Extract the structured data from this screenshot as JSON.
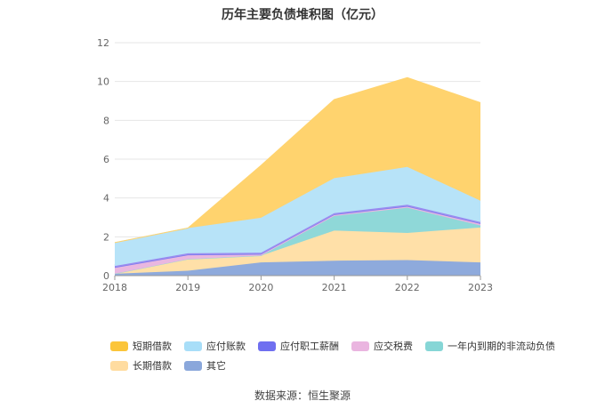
{
  "chart_data": {
    "type": "area",
    "stacked": true,
    "title": "历年主要负债堆积图（亿元）",
    "x": [
      "2018",
      "2019",
      "2020",
      "2021",
      "2022",
      "2023"
    ],
    "ylim": [
      0,
      12
    ],
    "yticks": [
      0,
      2,
      4,
      6,
      8,
      10,
      12
    ],
    "grid": true,
    "legend_position": "bottom",
    "series": [
      {
        "name": "其它",
        "color": "#8eaadc",
        "values": [
          0.1,
          0.25,
          0.68,
          0.77,
          0.8,
          0.68
        ]
      },
      {
        "name": "长期借款",
        "color": "#ffe0a8",
        "values": [
          0.0,
          0.6,
          0.35,
          1.55,
          1.4,
          1.8
        ]
      },
      {
        "name": "一年内到期的非流动负债",
        "color": "#8fd8d8",
        "values": [
          0.0,
          0.0,
          0.0,
          0.75,
          1.3,
          0.1
        ]
      },
      {
        "name": "应交税费",
        "color": "#e9b7e0",
        "values": [
          0.3,
          0.2,
          0.05,
          0.05,
          0.05,
          0.08
        ]
      },
      {
        "name": "应付职工薪酬",
        "color": "#7b7bef",
        "values": [
          0.1,
          0.1,
          0.1,
          0.1,
          0.1,
          0.1
        ]
      },
      {
        "name": "应付账款",
        "color": "#b7e3f8",
        "values": [
          1.2,
          1.3,
          1.8,
          1.8,
          1.95,
          1.1
        ]
      },
      {
        "name": "短期借款",
        "color": "#ffd36e",
        "values": [
          0.0,
          0.0,
          2.7,
          4.05,
          4.6,
          5.05
        ]
      }
    ]
  },
  "legend": {
    "row1": [
      {
        "label": "短期借款",
        "color": "#fbc53a"
      },
      {
        "label": "应付账款",
        "color": "#a8def8"
      },
      {
        "label": "应付职工薪酬",
        "color": "#6f6ff0"
      },
      {
        "label": "应交税费",
        "color": "#eab5e0"
      },
      {
        "label": "一年内到期的非流动负债",
        "color": "#86d6d6"
      }
    ],
    "row2": [
      {
        "label": "长期借款",
        "color": "#ffdca0"
      },
      {
        "label": "其它",
        "color": "#8aa7db"
      }
    ]
  },
  "source": "数据来源：恒生聚源"
}
